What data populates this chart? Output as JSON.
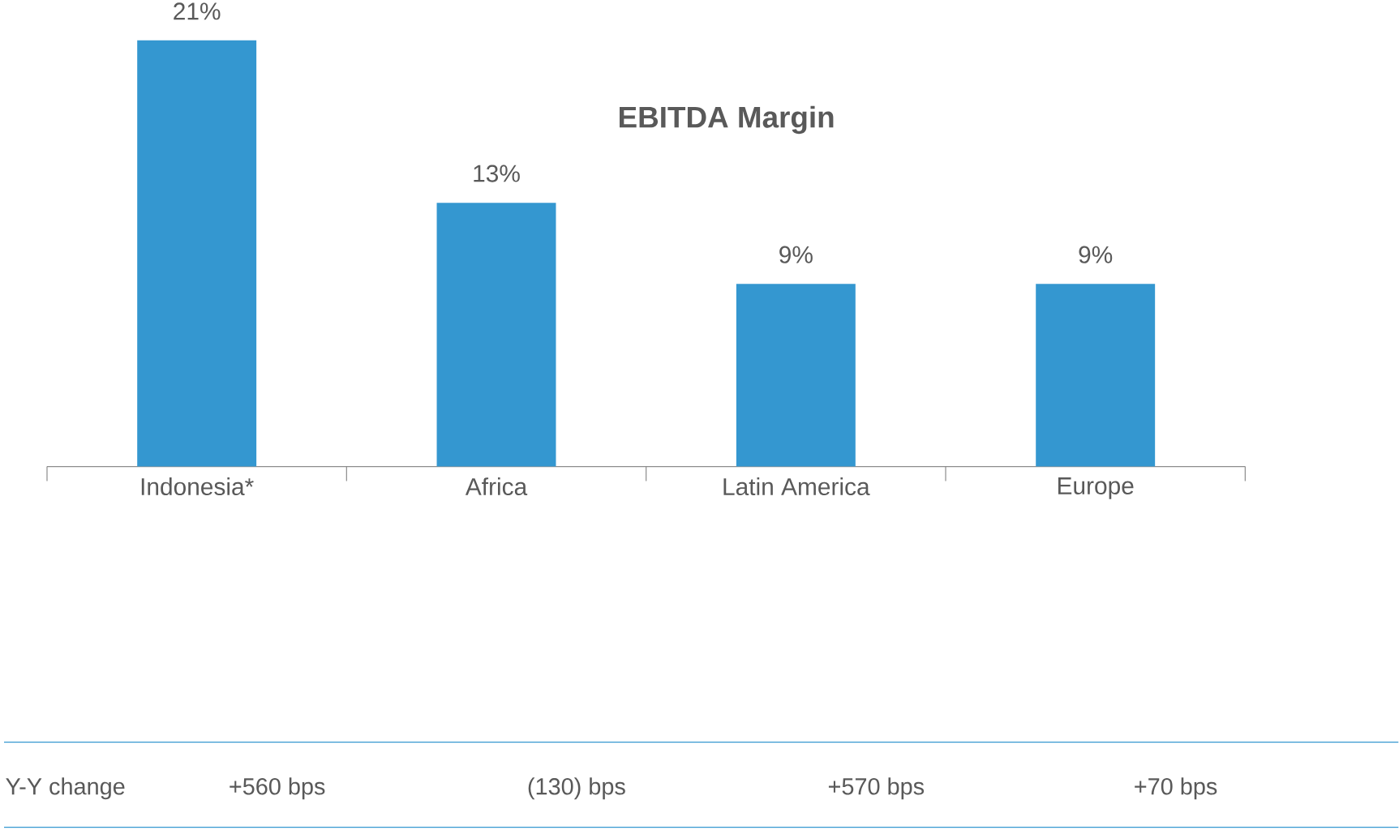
{
  "chart_data": {
    "type": "bar",
    "title": "EBITDA Margin",
    "categories": [
      "Indonesia*",
      "Africa",
      "Latin America",
      "Europe"
    ],
    "values": [
      21,
      13,
      9,
      9
    ],
    "value_labels": [
      "21%",
      "13%",
      "9%",
      "9%"
    ],
    "color": "#3497d0",
    "annotations": [
      "Y-Y change",
      "+560 bps",
      "(130) bps",
      "+570 bps",
      "+70 bps"
    ]
  }
}
